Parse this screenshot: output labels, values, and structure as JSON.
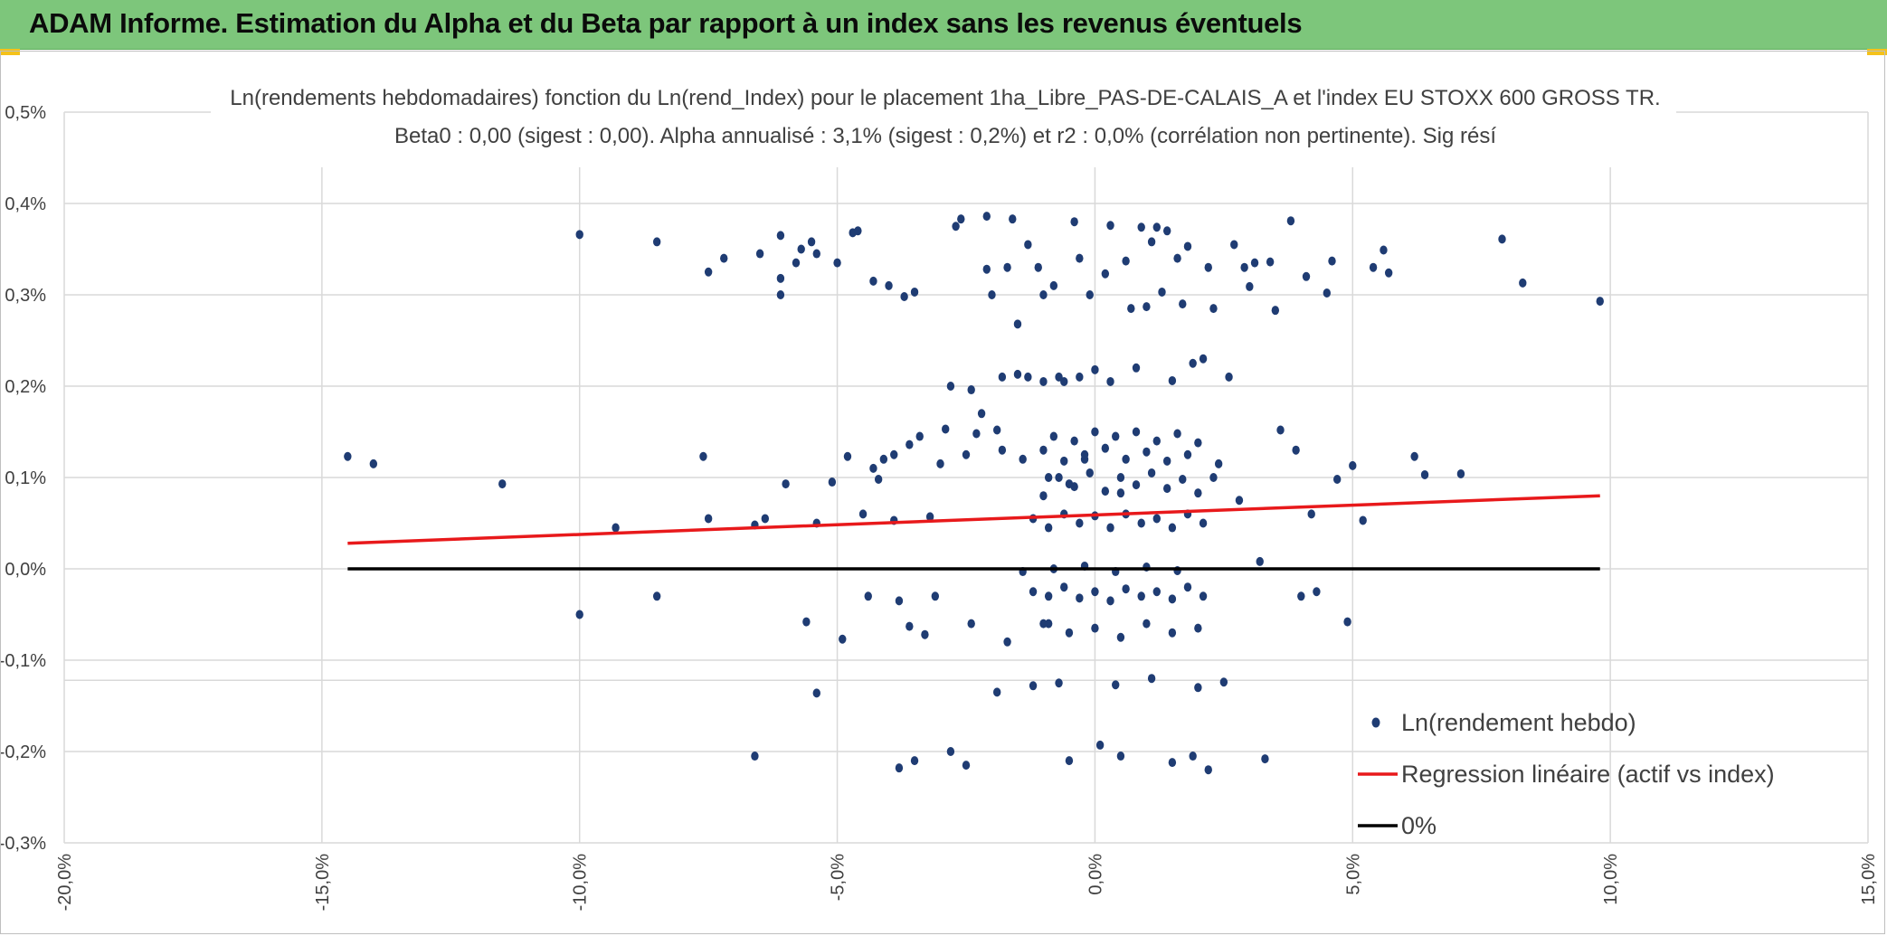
{
  "header": {
    "title": "ADAM Informe. Estimation du Alpha et du Beta par rapport à un index sans les revenus éventuels"
  },
  "colors": {
    "banner": "#7dc67b",
    "points": "#1f3c73",
    "regression": "#e8191b",
    "zero_line": "#000000",
    "grid": "#d9d9d9"
  },
  "chart_data": {
    "type": "scatter",
    "title": "Ln(rendements hebdomadaires) fonction du Ln(rend_Index) pour le placement 1ha_Libre_PAS-DE-CALAIS_A et l'index EU STOXX 600 GROSS TR.",
    "subtitle": "Beta0 : 0,00 (sigest : 0,00). Alpha annualisé : 3,1% (sigest : 0,2%) et r2 : 0,0% (corrélation non pertinente). Sig résí",
    "xlabel": "",
    "ylabel": "",
    "xlim": [
      -20,
      15
    ],
    "ylim": [
      -0.3,
      0.5
    ],
    "x_ticks": [
      "-20,0%",
      "-15,0%",
      "-10,0%",
      "-5,0%",
      "0,0%",
      "5,0%",
      "10,0%",
      "15,0%"
    ],
    "y_ticks": [
      "-0,3%",
      "-0,2%",
      "-0,1%",
      "0,0%",
      "0,1%",
      "0,2%",
      "0,3%",
      "0,4%",
      "0,5%"
    ],
    "grid": true,
    "legend_position": "bottom-right",
    "series": [
      {
        "name": "Ln(rendement hebdo)",
        "kind": "points",
        "points": [
          [
            -14.5,
            0.123
          ],
          [
            -14.0,
            0.115
          ],
          [
            -11.5,
            0.093
          ],
          [
            -10.0,
            0.366
          ],
          [
            -10.0,
            -0.05
          ],
          [
            -9.3,
            0.045
          ],
          [
            -8.5,
            0.358
          ],
          [
            -8.5,
            -0.03
          ],
          [
            -7.5,
            0.325
          ],
          [
            -7.5,
            0.055
          ],
          [
            -7.6,
            0.123
          ],
          [
            -7.2,
            0.34
          ],
          [
            -6.6,
            0.048
          ],
          [
            -6.6,
            -0.205
          ],
          [
            -6.5,
            0.345
          ],
          [
            -6.4,
            0.055
          ],
          [
            -6.1,
            0.365
          ],
          [
            -6.1,
            0.3
          ],
          [
            -6.1,
            0.318
          ],
          [
            -6.0,
            0.093
          ],
          [
            -5.8,
            0.335
          ],
          [
            -5.7,
            0.35
          ],
          [
            -5.6,
            -0.058
          ],
          [
            -5.5,
            0.358
          ],
          [
            -5.4,
            0.345
          ],
          [
            -5.4,
            -0.136
          ],
          [
            -5.4,
            0.05
          ],
          [
            -5.1,
            0.095
          ],
          [
            -5.0,
            0.335
          ],
          [
            -4.9,
            -0.077
          ],
          [
            -4.8,
            0.123
          ],
          [
            -4.7,
            0.368
          ],
          [
            -4.6,
            0.37
          ],
          [
            -4.5,
            0.06
          ],
          [
            -4.4,
            -0.03
          ],
          [
            -4.3,
            0.315
          ],
          [
            -4.3,
            0.11
          ],
          [
            -4.2,
            0.098
          ],
          [
            -4.1,
            0.12
          ],
          [
            -4.0,
            0.31
          ],
          [
            -3.9,
            0.053
          ],
          [
            -3.9,
            0.125
          ],
          [
            -3.8,
            -0.035
          ],
          [
            -3.8,
            -0.218
          ],
          [
            -3.7,
            0.298
          ],
          [
            -3.6,
            0.136
          ],
          [
            -3.6,
            -0.063
          ],
          [
            -3.5,
            0.303
          ],
          [
            -3.4,
            0.145
          ],
          [
            -3.3,
            -0.072
          ],
          [
            -3.2,
            0.057
          ],
          [
            -3.1,
            -0.03
          ],
          [
            -3.0,
            0.115
          ],
          [
            -2.9,
            0.153
          ],
          [
            -2.8,
            0.2
          ],
          [
            -2.7,
            0.375
          ],
          [
            -2.6,
            0.383
          ],
          [
            -2.5,
            0.125
          ],
          [
            -2.4,
            0.196
          ],
          [
            -2.4,
            -0.06
          ],
          [
            -2.3,
            0.148
          ],
          [
            -2.2,
            0.17
          ],
          [
            -2.1,
            0.386
          ],
          [
            -2.1,
            0.328
          ],
          [
            -2.0,
            0.3
          ],
          [
            -1.9,
            0.152
          ],
          [
            -1.9,
            -0.135
          ],
          [
            -1.8,
            0.21
          ],
          [
            -1.8,
            0.13
          ],
          [
            -1.7,
            0.33
          ],
          [
            -1.7,
            -0.08
          ],
          [
            -1.6,
            0.383
          ],
          [
            -1.5,
            0.268
          ],
          [
            -1.5,
            0.213
          ],
          [
            -1.4,
            0.12
          ],
          [
            -1.4,
            -0.003
          ],
          [
            -1.3,
            0.355
          ],
          [
            -1.3,
            0.21
          ],
          [
            -1.2,
            -0.128
          ],
          [
            -1.1,
            0.33
          ],
          [
            -1.0,
            0.3
          ],
          [
            -1.0,
            0.205
          ],
          [
            -0.9,
            0.1
          ],
          [
            -0.9,
            -0.06
          ],
          [
            -0.8,
            0.31
          ],
          [
            -0.7,
            0.21
          ],
          [
            -0.7,
            -0.125
          ],
          [
            -0.6,
            0.205
          ],
          [
            -0.5,
            0.093
          ],
          [
            -0.4,
            0.38
          ],
          [
            -0.3,
            0.34
          ],
          [
            -0.3,
            0.21
          ],
          [
            -0.2,
            0.12
          ],
          [
            -0.1,
            0.3
          ],
          [
            0.0,
            0.218
          ],
          [
            0.1,
            -0.193
          ],
          [
            0.2,
            0.323
          ],
          [
            0.3,
            0.376
          ],
          [
            0.3,
            0.205
          ],
          [
            0.4,
            -0.127
          ],
          [
            0.5,
            0.083
          ],
          [
            0.6,
            0.337
          ],
          [
            0.7,
            0.285
          ],
          [
            0.8,
            0.22
          ],
          [
            0.9,
            0.374
          ],
          [
            1.0,
            0.287
          ],
          [
            1.1,
            0.358
          ],
          [
            1.1,
            -0.12
          ],
          [
            1.2,
            0.374
          ],
          [
            1.3,
            0.303
          ],
          [
            1.4,
            0.37
          ],
          [
            1.5,
            0.206
          ],
          [
            1.6,
            0.34
          ],
          [
            1.7,
            0.29
          ],
          [
            1.8,
            0.353
          ],
          [
            1.9,
            0.225
          ],
          [
            2.0,
            -0.13
          ],
          [
            2.1,
            0.23
          ],
          [
            2.2,
            0.33
          ],
          [
            2.3,
            0.285
          ],
          [
            2.4,
            0.115
          ],
          [
            2.5,
            -0.124
          ],
          [
            2.6,
            0.21
          ],
          [
            2.7,
            0.355
          ],
          [
            2.8,
            0.075
          ],
          [
            2.9,
            0.33
          ],
          [
            3.0,
            0.309
          ],
          [
            3.1,
            0.335
          ],
          [
            3.2,
            0.008
          ],
          [
            3.3,
            -0.208
          ],
          [
            3.4,
            0.336
          ],
          [
            3.5,
            0.283
          ],
          [
            3.6,
            0.152
          ],
          [
            3.8,
            0.381
          ],
          [
            3.9,
            0.13
          ],
          [
            4.0,
            -0.03
          ],
          [
            4.1,
            0.32
          ],
          [
            4.2,
            0.06
          ],
          [
            4.3,
            -0.025
          ],
          [
            4.5,
            0.302
          ],
          [
            4.6,
            0.337
          ],
          [
            4.7,
            0.098
          ],
          [
            4.9,
            -0.058
          ],
          [
            5.0,
            0.113
          ],
          [
            5.2,
            0.053
          ],
          [
            5.4,
            0.33
          ],
          [
            5.6,
            0.349
          ],
          [
            5.7,
            0.324
          ],
          [
            6.2,
            0.123
          ],
          [
            6.4,
            0.103
          ],
          [
            7.1,
            0.104
          ],
          [
            7.9,
            0.361
          ],
          [
            8.3,
            0.313
          ],
          [
            9.8,
            0.293
          ],
          [
            -1.0,
            0.13
          ],
          [
            -0.8,
            0.145
          ],
          [
            -0.6,
            0.118
          ],
          [
            -0.4,
            0.14
          ],
          [
            -0.2,
            0.125
          ],
          [
            0.0,
            0.15
          ],
          [
            0.2,
            0.132
          ],
          [
            0.4,
            0.145
          ],
          [
            0.6,
            0.12
          ],
          [
            0.8,
            0.15
          ],
          [
            1.0,
            0.128
          ],
          [
            1.2,
            0.14
          ],
          [
            1.4,
            0.118
          ],
          [
            1.6,
            0.148
          ],
          [
            1.8,
            0.125
          ],
          [
            2.0,
            0.138
          ],
          [
            -1.0,
            0.08
          ],
          [
            -0.7,
            0.1
          ],
          [
            -0.4,
            0.09
          ],
          [
            -0.1,
            0.105
          ],
          [
            0.2,
            0.085
          ],
          [
            0.5,
            0.1
          ],
          [
            0.8,
            0.092
          ],
          [
            1.1,
            0.105
          ],
          [
            1.4,
            0.088
          ],
          [
            1.7,
            0.098
          ],
          [
            2.0,
            0.083
          ],
          [
            2.3,
            0.1
          ],
          [
            -1.2,
            0.055
          ],
          [
            -0.9,
            0.045
          ],
          [
            -0.6,
            0.06
          ],
          [
            -0.3,
            0.05
          ],
          [
            0.0,
            0.058
          ],
          [
            0.3,
            0.045
          ],
          [
            0.6,
            0.06
          ],
          [
            0.9,
            0.05
          ],
          [
            1.2,
            0.055
          ],
          [
            1.5,
            0.045
          ],
          [
            1.8,
            0.06
          ],
          [
            2.1,
            0.05
          ],
          [
            -1.2,
            -0.025
          ],
          [
            -0.9,
            -0.03
          ],
          [
            -0.6,
            -0.02
          ],
          [
            -0.3,
            -0.032
          ],
          [
            0.0,
            -0.025
          ],
          [
            0.3,
            -0.035
          ],
          [
            0.6,
            -0.022
          ],
          [
            0.9,
            -0.03
          ],
          [
            1.2,
            -0.025
          ],
          [
            1.5,
            -0.033
          ],
          [
            1.8,
            -0.02
          ],
          [
            2.1,
            -0.03
          ],
          [
            -1.0,
            -0.06
          ],
          [
            -0.5,
            -0.07
          ],
          [
            0.0,
            -0.065
          ],
          [
            0.5,
            -0.075
          ],
          [
            1.0,
            -0.06
          ],
          [
            1.5,
            -0.07
          ],
          [
            2.0,
            -0.065
          ],
          [
            -0.8,
            0.0
          ],
          [
            -0.2,
            0.003
          ],
          [
            0.4,
            -0.003
          ],
          [
            1.0,
            0.002
          ],
          [
            1.6,
            -0.002
          ],
          [
            -0.5,
            -0.21
          ],
          [
            0.5,
            -0.205
          ],
          [
            1.5,
            -0.212
          ],
          [
            -2.8,
            -0.2
          ],
          [
            -2.5,
            -0.215
          ],
          [
            -3.5,
            -0.21
          ],
          [
            2.2,
            -0.22
          ],
          [
            1.9,
            -0.205
          ]
        ]
      },
      {
        "name": "Regression linéaire (actif vs index)",
        "kind": "line",
        "x": [
          -14.5,
          9.8
        ],
        "y": [
          0.028,
          0.08
        ]
      },
      {
        "name": "0%",
        "kind": "line",
        "x": [
          -14.5,
          9.8
        ],
        "y": [
          0.0,
          0.0
        ]
      }
    ]
  }
}
